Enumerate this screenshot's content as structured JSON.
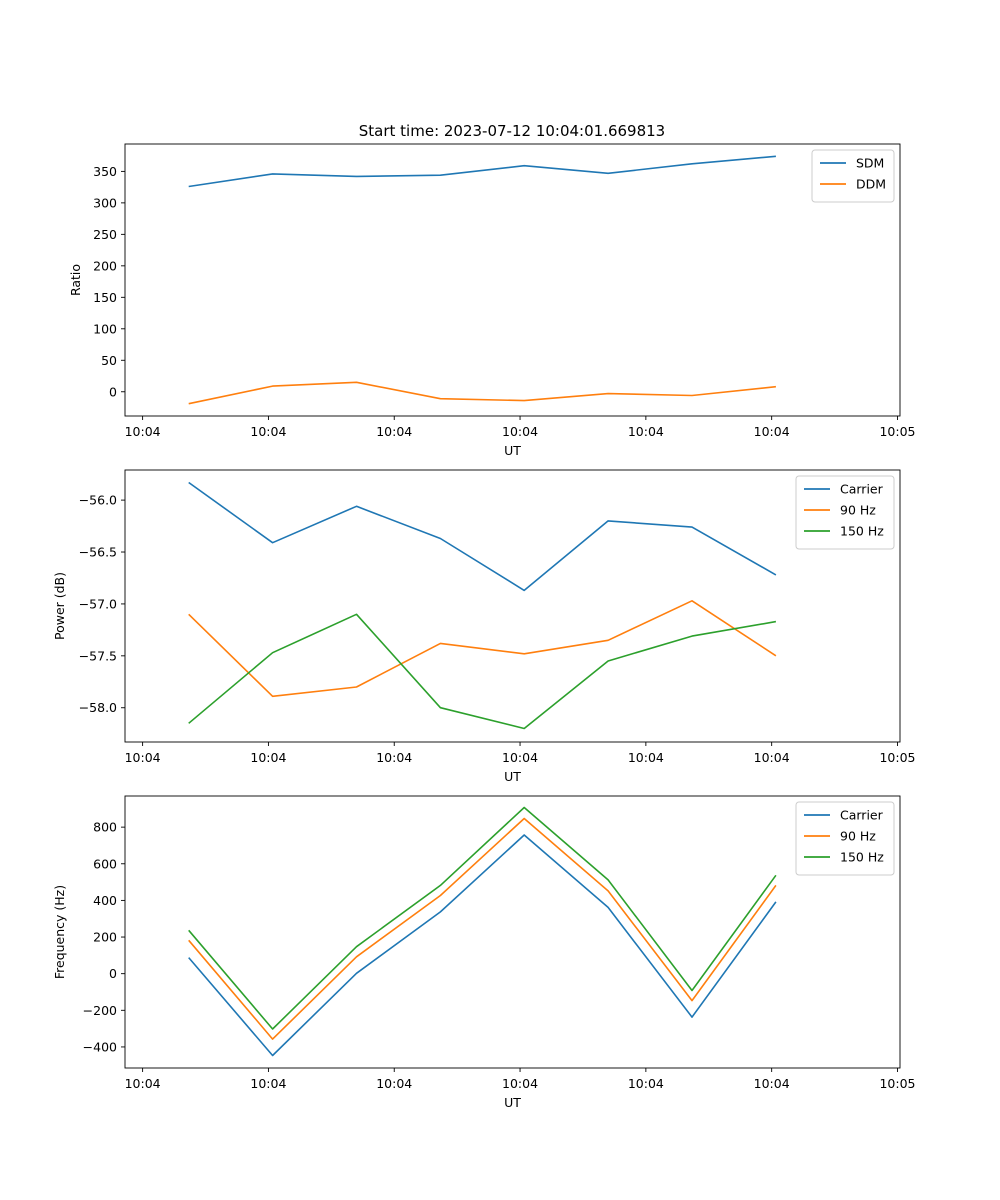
{
  "figure": {
    "title": "Start time: 2023-07-12 10:04:01.669813"
  },
  "chart_data": [
    {
      "type": "line",
      "title": "Start time: 2023-07-12 10:04:01.669813",
      "xlabel": "UT",
      "ylabel": "Ratio",
      "x": [
        1.0,
        2.0,
        3.0,
        4.0,
        5.0,
        6.0,
        7.0,
        8.0
      ],
      "xlim": [
        0.24,
        9.48
      ],
      "xticks": [
        0.45,
        1.95,
        3.45,
        4.95,
        6.45,
        7.95,
        9.45
      ],
      "xticklabels": [
        "10:04",
        "10:04",
        "10:04",
        "10:04",
        "10:04",
        "10:04",
        "10:05"
      ],
      "ylim": [
        -38.5,
        393.5
      ],
      "yticks": [
        0,
        50,
        100,
        150,
        200,
        250,
        300,
        350
      ],
      "yticklabels": [
        "0",
        "50",
        "100",
        "150",
        "200",
        "250",
        "300",
        "350"
      ],
      "legend_position": "top-right",
      "series": [
        {
          "name": "SDM",
          "color": "#1f77b4",
          "values": [
            326,
            346,
            342,
            344,
            359,
            347,
            362,
            374
          ]
        },
        {
          "name": "DDM",
          "color": "#ff7f0e",
          "values": [
            -19,
            9,
            15,
            -11,
            -14,
            -3,
            -6,
            8
          ]
        }
      ]
    },
    {
      "type": "line",
      "xlabel": "UT",
      "ylabel": "Power (dB)",
      "x": [
        1.0,
        2.0,
        3.0,
        4.0,
        5.0,
        6.0,
        7.0,
        8.0
      ],
      "xlim": [
        0.24,
        9.48
      ],
      "xticks": [
        0.45,
        1.95,
        3.45,
        4.95,
        6.45,
        7.95,
        9.45
      ],
      "xticklabels": [
        "10:04",
        "10:04",
        "10:04",
        "10:04",
        "10:04",
        "10:04",
        "10:05"
      ],
      "ylim": [
        -58.33,
        -55.71
      ],
      "yticks": [
        -58.0,
        -57.5,
        -57.0,
        -56.5,
        -56.0
      ],
      "yticklabels": [
        "−58.0",
        "−57.5",
        "−57.0",
        "−56.5",
        "−56.0"
      ],
      "legend_position": "top-right",
      "series": [
        {
          "name": "Carrier",
          "color": "#1f77b4",
          "values": [
            -55.83,
            -56.41,
            -56.06,
            -56.37,
            -56.87,
            -56.2,
            -56.26,
            -56.72
          ]
        },
        {
          "name": "90 Hz",
          "color": "#ff7f0e",
          "values": [
            -57.1,
            -57.89,
            -57.8,
            -57.38,
            -57.48,
            -57.35,
            -56.97,
            -57.5
          ]
        },
        {
          "name": "150 Hz",
          "color": "#2ca02c",
          "values": [
            -58.15,
            -57.47,
            -57.1,
            -58.0,
            -58.2,
            -57.55,
            -57.31,
            -57.17
          ]
        }
      ]
    },
    {
      "type": "line",
      "xlabel": "UT",
      "ylabel": "Frequency (Hz)",
      "x": [
        1.0,
        2.0,
        3.0,
        4.0,
        5.0,
        6.0,
        7.0,
        8.0
      ],
      "xlim": [
        0.24,
        9.48
      ],
      "xticks": [
        0.45,
        1.95,
        3.45,
        4.95,
        6.45,
        7.95,
        9.45
      ],
      "xticklabels": [
        "10:04",
        "10:04",
        "10:04",
        "10:04",
        "10:04",
        "10:04",
        "10:05"
      ],
      "ylim": [
        -515,
        970
      ],
      "yticks": [
        -400,
        -200,
        0,
        200,
        400,
        600,
        800
      ],
      "yticklabels": [
        "−400",
        "−200",
        "0",
        "200",
        "400",
        "600",
        "800"
      ],
      "legend_position": "top-right",
      "series": [
        {
          "name": "Carrier",
          "color": "#1f77b4",
          "values": [
            88,
            -447,
            2,
            337,
            757,
            362,
            -237,
            392
          ]
        },
        {
          "name": "90 Hz",
          "color": "#ff7f0e",
          "values": [
            182,
            -357,
            92,
            427,
            847,
            452,
            -147,
            482
          ]
        },
        {
          "name": "150 Hz",
          "color": "#2ca02c",
          "values": [
            237,
            -302,
            147,
            482,
            907,
            512,
            -92,
            537
          ]
        }
      ]
    }
  ]
}
